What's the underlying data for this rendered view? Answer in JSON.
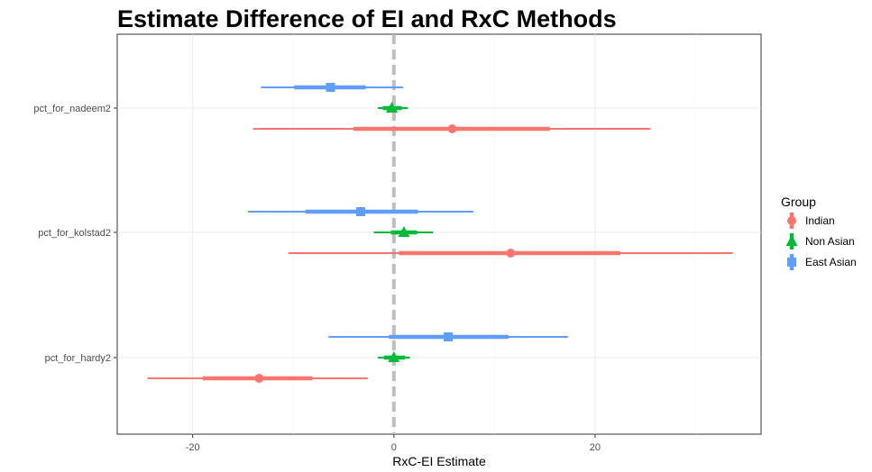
{
  "chart_data": {
    "type": "scatter",
    "subtype": "coefficient-interval-plot",
    "title": "Estimate Difference of EI and RxC Methods",
    "xlabel": "RxC-EI Estimate",
    "ylabel": "",
    "xlim": [
      -27.5,
      36.5
    ],
    "x_ticks": [
      -20,
      0,
      20
    ],
    "x_tick_labels": [
      "-20",
      "0",
      "20"
    ],
    "reference_line": {
      "x": 0,
      "style": "dashed",
      "color": "#bebebe"
    },
    "grid": true,
    "legend": {
      "title": "Group",
      "position": "right",
      "entries": [
        {
          "label": "Indian",
          "color": "#F8766D",
          "shape": "circle"
        },
        {
          "label": "Non Asian",
          "color": "#00BA38",
          "shape": "triangle"
        },
        {
          "label": "East Asian",
          "color": "#619CFF",
          "shape": "square"
        }
      ]
    },
    "categories": [
      "pct_for_nadeem2",
      "pct_for_kolstad2",
      "pct_for_hardy2"
    ],
    "series": [
      {
        "name": "East Asian",
        "color": "#619CFF",
        "shape": "square",
        "estimates": [
          -6.3,
          -3.3,
          5.4
        ],
        "inner_low": [
          -9.9,
          -8.8,
          -0.5
        ],
        "inner_high": [
          -2.8,
          2.4,
          11.4
        ],
        "outer_low": [
          -13.2,
          -14.5,
          -6.5
        ],
        "outer_high": [
          0.9,
          7.9,
          17.3
        ]
      },
      {
        "name": "Non Asian",
        "color": "#00BA38",
        "shape": "triangle",
        "estimates": [
          -0.2,
          1.0,
          0.0
        ],
        "inner_low": [
          -1.1,
          -0.3,
          -1.0
        ],
        "inner_high": [
          0.8,
          2.3,
          1.1
        ],
        "outer_low": [
          -1.6,
          -2.0,
          -1.6
        ],
        "outer_high": [
          1.4,
          3.9,
          1.6
        ]
      },
      {
        "name": "Indian",
        "color": "#F8766D",
        "shape": "circle",
        "estimates": [
          5.8,
          11.6,
          -13.4
        ],
        "inner_low": [
          -4.0,
          0.5,
          -19.0
        ],
        "inner_high": [
          15.5,
          22.5,
          -8.1
        ],
        "outer_low": [
          -14.0,
          -10.5,
          -24.5
        ],
        "outer_high": [
          25.5,
          33.7,
          -2.6
        ]
      }
    ]
  }
}
